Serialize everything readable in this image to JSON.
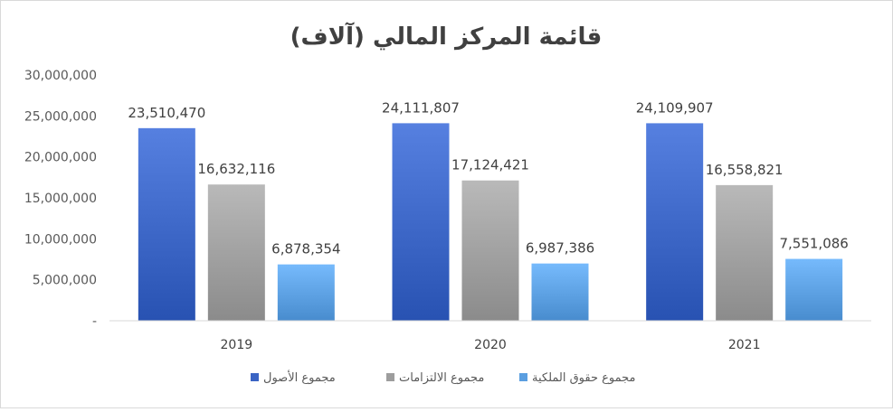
{
  "chart_data": {
    "type": "bar",
    "title": "قائمة المركز المالي (آلاف)",
    "categories": [
      "2019",
      "2020",
      "2021"
    ],
    "series": [
      {
        "name": "مجموع الأصول",
        "values": [
          23510470,
          24111807,
          24109907
        ],
        "color": "#3a64c4",
        "labels": [
          "23,510,470",
          "24,111,807",
          "24,109,907"
        ]
      },
      {
        "name": "مجموع الالتزامات",
        "values": [
          16632116,
          17124421,
          16558821
        ],
        "color": "#9d9d9d",
        "labels": [
          "16,632,116",
          "17,124,421",
          "16,558,821"
        ]
      },
      {
        "name": "مجموع حقوق الملكية",
        "values": [
          6878354,
          6987386,
          7551086
        ],
        "color": "#5a9ee0",
        "labels": [
          "6,878,354",
          "6,987,386",
          "7,551,086"
        ]
      }
    ],
    "ylim": [
      0,
      30000000
    ],
    "yticks": [
      "-",
      "5,000,000",
      "10,000,000",
      "15,000,000",
      "20,000,000",
      "25,000,000",
      "30,000,000"
    ],
    "grid": false,
    "legend_position": "bottom"
  }
}
